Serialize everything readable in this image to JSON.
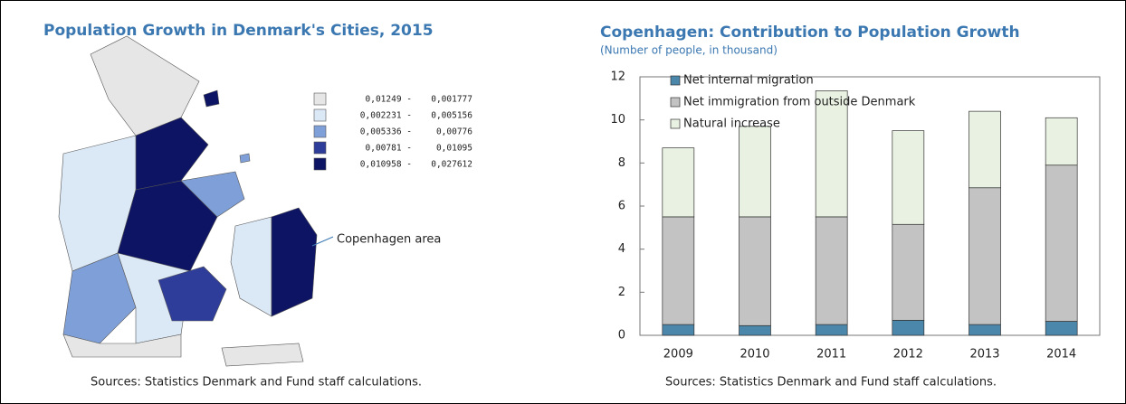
{
  "map": {
    "title": "Population Growth in Denmark's Cities, 2015",
    "legend": [
      {
        "color": "#e6e6e6",
        "from": "0,01249 -",
        "to": "0,001777"
      },
      {
        "color": "#dbe8f6",
        "from": "0,002231 -",
        "to": "0,005156"
      },
      {
        "color": "#7f9fd8",
        "from": "0,005336 -",
        "to": "0,00776"
      },
      {
        "color": "#2e3d9a",
        "from": "0,00781 -",
        "to": "0,01095"
      },
      {
        "color": "#0d1463",
        "from": "0,010958 -",
        "to": "0,027612"
      }
    ],
    "annotation": "Copenhagen area",
    "source": "Sources: Statistics Denmark and Fund staff calculations."
  },
  "chart_data": {
    "type": "stacked_bar",
    "title": "Copenhagen: Contribution to Population Growth",
    "subtitle": "(Number of people, in thousand)",
    "categories": [
      "2009",
      "2010",
      "2011",
      "2012",
      "2013",
      "2014"
    ],
    "series": [
      {
        "name": "Net internal migration",
        "color": "#4a87ab",
        "values": [
          0.5,
          0.45,
          0.5,
          0.7,
          0.5,
          0.65
        ]
      },
      {
        "name": "Net immigration from outside Denmark",
        "color": "#c3c3c3",
        "values": [
          5.0,
          5.05,
          5.0,
          4.45,
          6.35,
          7.25
        ]
      },
      {
        "name": "Natural increase",
        "color": "#e9f1e2",
        "values": [
          3.2,
          4.2,
          5.85,
          4.35,
          3.55,
          2.2
        ]
      }
    ],
    "ylim": [
      0,
      12
    ],
    "yticks": [
      0,
      2,
      4,
      6,
      8,
      10,
      12
    ],
    "source": "Sources: Statistics Denmark and Fund staff calculations."
  }
}
